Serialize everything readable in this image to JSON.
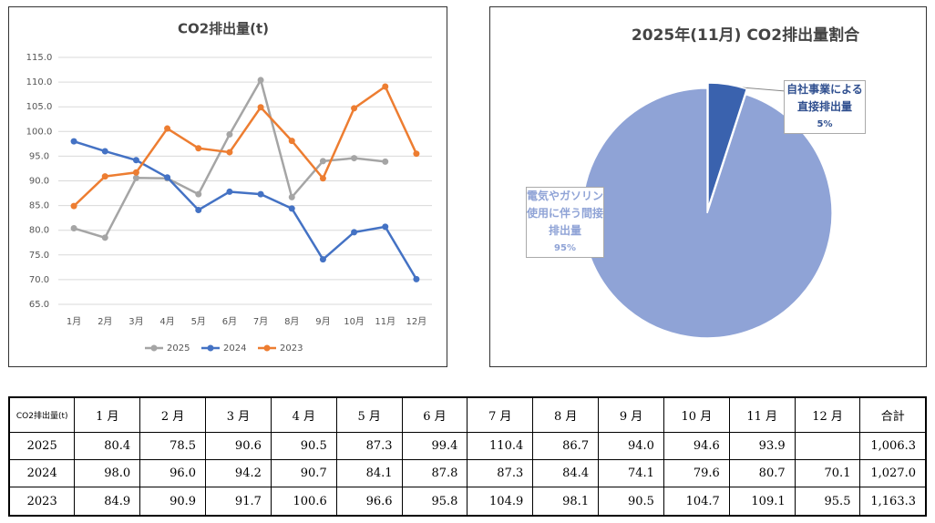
{
  "chart_data": [
    {
      "type": "line",
      "title": "CO2排出量(t)",
      "categories": [
        "1月",
        "2月",
        "3月",
        "4月",
        "5月",
        "6月",
        "7月",
        "8月",
        "9月",
        "10月",
        "11月",
        "12月"
      ],
      "series": [
        {
          "name": "2025",
          "color": "#a5a5a5",
          "values": [
            80.4,
            78.5,
            90.6,
            90.5,
            87.3,
            99.4,
            110.4,
            86.7,
            94.0,
            94.6,
            93.9,
            null
          ]
        },
        {
          "name": "2024",
          "color": "#4472c4",
          "values": [
            98.0,
            96.0,
            94.2,
            90.7,
            84.1,
            87.8,
            87.3,
            84.4,
            74.1,
            79.6,
            80.7,
            70.1
          ]
        },
        {
          "name": "2023",
          "color": "#ed7d31",
          "values": [
            84.9,
            90.9,
            91.7,
            100.6,
            96.6,
            95.8,
            104.9,
            98.1,
            90.5,
            104.7,
            109.1,
            95.5
          ]
        }
      ],
      "ylim": [
        65,
        115
      ],
      "yticks": [
        {
          "value": 65,
          "label": "65.0"
        },
        {
          "value": 70,
          "label": "70.0"
        },
        {
          "value": 75,
          "label": "75.0"
        },
        {
          "value": 80,
          "label": "80.0"
        },
        {
          "value": 85,
          "label": "85.0"
        },
        {
          "value": 90,
          "label": "90.0"
        },
        {
          "value": 95,
          "label": "95.0"
        },
        {
          "value": 100,
          "label": "100.0"
        },
        {
          "value": 105,
          "label": "105.0"
        },
        {
          "value": 110,
          "label": "110.0"
        },
        {
          "value": 115,
          "label": "115.0"
        }
      ],
      "grid": true,
      "legend": "bottom"
    },
    {
      "type": "pie",
      "title": "2025年(11月) CO2排出量割合",
      "categories": [
        "自社事業による直接排出量",
        "電気やガソリン使用に伴う間接排出量"
      ],
      "values": [
        5,
        95
      ],
      "value_labels": [
        "5%",
        "95%"
      ],
      "colors": [
        "#3a62ae",
        "#8fa3d6"
      ]
    }
  ],
  "table": {
    "header": [
      "CO2排出量(t)",
      "1 月",
      "2 月",
      "3 月",
      "4 月",
      "5 月",
      "6 月",
      "7 月",
      "8 月",
      "9 月",
      "10 月",
      "11 月",
      "12 月",
      "合計"
    ],
    "rows": [
      [
        "2025",
        "80.4",
        "78.5",
        "90.6",
        "90.5",
        "87.3",
        "99.4",
        "110.4",
        "86.7",
        "94.0",
        "94.6",
        "93.9",
        null,
        "1,006.3"
      ],
      [
        "2024",
        "98.0",
        "96.0",
        "94.2",
        "90.7",
        "84.1",
        "87.8",
        "87.3",
        "84.4",
        "74.1",
        "79.6",
        "80.7",
        "70.1",
        "1,027.0"
      ],
      [
        "2023",
        "84.9",
        "90.9",
        "91.7",
        "100.6",
        "96.6",
        "95.8",
        "104.9",
        "98.1",
        "90.5",
        "104.7",
        "109.1",
        "95.5",
        "1,163.3"
      ]
    ]
  }
}
